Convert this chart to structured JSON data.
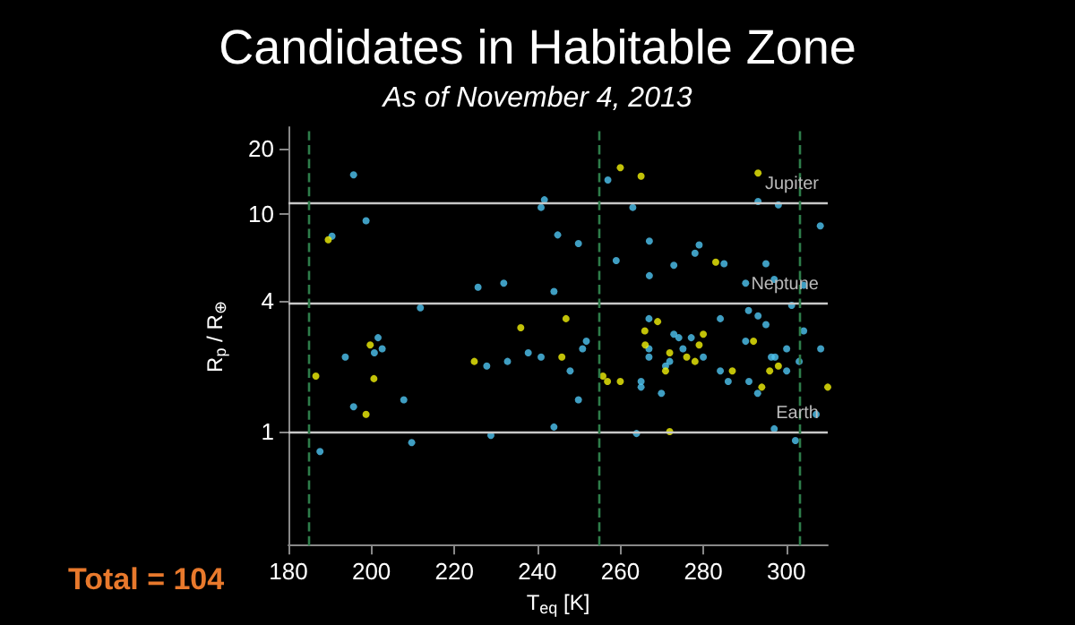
{
  "chart_data": {
    "type": "scatter",
    "title": "Candidates in Habitable Zone",
    "subtitle": "As of November 4, 2013",
    "xlabel": "T$_{eq}$ [K]",
    "ylabel": "R$_{p}$ / R$_{⊕}$",
    "annotations": [
      "Total = 104"
    ],
    "log": "y",
    "grid": false,
    "marker": "circle",
    "xlim": [
      180,
      310
    ],
    "xticks": [
      180,
      200,
      220,
      240,
      260,
      280,
      300
    ],
    "ylim": [
      0.3,
      25
    ],
    "yticks": [
      1,
      4,
      10,
      20
    ],
    "ref_lines": [
      {
        "axis": "y",
        "value": 11.3,
        "label": "Jupiter",
        "color": "#c8c8c8",
        "line_style": "solid"
      },
      {
        "axis": "y",
        "value": 3.9,
        "label": "Neptune",
        "color": "#c8c8c8",
        "line_style": "solid"
      },
      {
        "axis": "y",
        "value": 1,
        "label": "Earth",
        "color": "#c8c8c8",
        "line_style": "solid"
      },
      {
        "axis": "x",
        "value": 185,
        "color": "#2e7d4a",
        "line_style": "dashed"
      },
      {
        "axis": "x",
        "value": 255,
        "color": "#2e7d4a",
        "line_style": "dashed"
      },
      {
        "axis": "x",
        "value": 303,
        "color": "#2e7d4a",
        "line_style": "dashed"
      }
    ],
    "series": [
      {
        "color": "#4fc6f2",
        "x": [
          195.7,
          198.7,
          190.5,
          241.7,
          240.9,
          225.7,
          231.9,
          244,
          211.8,
          201.6,
          200.7,
          202.6,
          193.7,
          227.8,
          232.8,
          237.8,
          240.9,
          195.7,
          207.8,
          187.6,
          209.7,
          228.8,
          244,
          257,
          263,
          293.2,
          298.1,
          308.2,
          244.9,
          249.9,
          267,
          279,
          278,
          259,
          272.9,
          285,
          295.1,
          267,
          290.2,
          297.1,
          304.2,
          301.3,
          290.9,
          293.2,
          295.1,
          266.9,
          284.1,
          304.2,
          272.9,
          274.1,
          277.1,
          290.2,
          308.3,
          251.8,
          250.9,
          266.9,
          266.9,
          275.1,
          271.9,
          270.9,
          280,
          296.4,
          297.3,
          300.1,
          303.1,
          300.1,
          247.9,
          284.1,
          286,
          291,
          265,
          265,
          269.9,
          293.1,
          249.9,
          307.2,
          297.1,
          263.9,
          302.2
        ],
        "values": [
          15.1,
          9.3,
          7.9,
          11.6,
          10.7,
          4.6,
          4.8,
          4.4,
          3.7,
          2.7,
          2.3,
          2.4,
          2.2,
          2.0,
          2.1,
          2.3,
          2.2,
          1.3,
          1.4,
          0.81,
          0.89,
          0.96,
          1.05,
          14.3,
          10.7,
          11.4,
          11.0,
          8.8,
          8.0,
          7.3,
          7.5,
          7.2,
          6.6,
          6.1,
          5.8,
          5.9,
          5.9,
          5.2,
          4.8,
          5.0,
          4.7,
          3.8,
          3.6,
          3.4,
          3.1,
          3.3,
          3.3,
          2.9,
          2.8,
          2.7,
          2.7,
          2.6,
          2.4,
          2.6,
          2.4,
          2.4,
          2.2,
          2.4,
          2.1,
          2.0,
          2.2,
          2.2,
          2.2,
          2.4,
          2.1,
          1.9,
          1.9,
          1.9,
          1.7,
          1.7,
          1.7,
          1.6,
          1.5,
          1.5,
          1.4,
          1.2,
          1.03,
          0.98,
          0.91
        ]
      },
      {
        "color": "#f2f20a",
        "x": [
          189.6,
          186.6,
          199.7,
          200.6,
          198.7,
          236,
          224.8,
          260,
          265,
          293.2,
          283,
          246.9,
          269,
          265.9,
          280,
          266,
          279,
          292.1,
          271.9,
          276,
          278,
          270.9,
          245.9,
          255.8,
          256.9,
          260,
          287,
          296,
          298.1,
          294.1,
          310,
          271.9
        ],
        "values": [
          7.6,
          1.8,
          2.5,
          1.75,
          1.2,
          3.0,
          2.1,
          16.3,
          14.9,
          15.4,
          6.0,
          3.3,
          3.2,
          2.9,
          2.8,
          2.5,
          2.5,
          2.6,
          2.3,
          2.2,
          2.1,
          1.9,
          2.2,
          1.8,
          1.7,
          1.7,
          1.9,
          1.9,
          2.0,
          1.6,
          1.6,
          1.0
        ]
      }
    ]
  }
}
